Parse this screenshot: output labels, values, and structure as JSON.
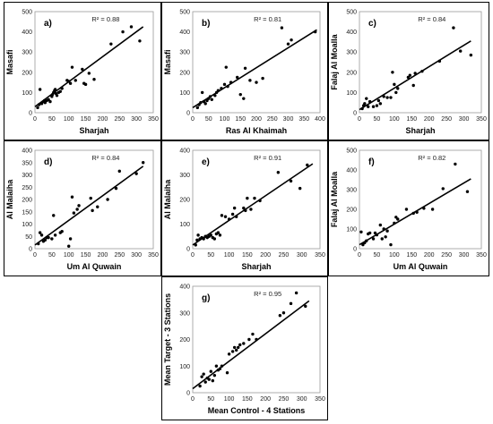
{
  "chart_data": [
    {
      "id": "a",
      "type": "scatter",
      "letter": "a)",
      "r2": "R² = 0.88",
      "xlabel": "Sharjah",
      "ylabel": "Masafi",
      "xlim": [
        0,
        350
      ],
      "ylim": [
        0,
        500
      ],
      "xticks": [
        0,
        50,
        100,
        150,
        200,
        250,
        300,
        350
      ],
      "yticks": [
        0,
        100,
        200,
        300,
        400,
        500
      ],
      "trendline": [
        [
          0,
          30
        ],
        [
          320,
          425
        ]
      ],
      "points": [
        [
          8,
          25
        ],
        [
          12,
          40
        ],
        [
          15,
          115
        ],
        [
          20,
          45
        ],
        [
          25,
          55
        ],
        [
          28,
          60
        ],
        [
          30,
          50
        ],
        [
          35,
          60
        ],
        [
          40,
          65
        ],
        [
          45,
          55
        ],
        [
          50,
          80
        ],
        [
          52,
          90
        ],
        [
          55,
          100
        ],
        [
          58,
          110
        ],
        [
          60,
          115
        ],
        [
          62,
          95
        ],
        [
          65,
          85
        ],
        [
          70,
          100
        ],
        [
          75,
          105
        ],
        [
          80,
          120
        ],
        [
          95,
          160
        ],
        [
          100,
          155
        ],
        [
          105,
          145
        ],
        [
          110,
          225
        ],
        [
          120,
          160
        ],
        [
          140,
          215
        ],
        [
          145,
          145
        ],
        [
          150,
          140
        ],
        [
          160,
          195
        ],
        [
          175,
          165
        ],
        [
          225,
          340
        ],
        [
          260,
          400
        ],
        [
          285,
          425
        ],
        [
          310,
          355
        ]
      ]
    },
    {
      "id": "b",
      "type": "scatter",
      "letter": "b)",
      "r2": "R² = 0.81",
      "xlabel": "Ras Al Khaimah",
      "ylabel": "Masafi",
      "xlim": [
        0,
        400
      ],
      "ylim": [
        0,
        500
      ],
      "xticks": [
        0,
        50,
        100,
        150,
        200,
        250,
        300,
        350,
        400
      ],
      "yticks": [
        0,
        100,
        200,
        300,
        400,
        500
      ],
      "trendline": [
        [
          0,
          25
        ],
        [
          390,
          410
        ]
      ],
      "points": [
        [
          15,
          25
        ],
        [
          20,
          40
        ],
        [
          25,
          50
        ],
        [
          30,
          100
        ],
        [
          35,
          55
        ],
        [
          40,
          45
        ],
        [
          45,
          60
        ],
        [
          50,
          70
        ],
        [
          55,
          80
        ],
        [
          60,
          65
        ],
        [
          70,
          85
        ],
        [
          75,
          100
        ],
        [
          80,
          110
        ],
        [
          90,
          120
        ],
        [
          100,
          140
        ],
        [
          105,
          225
        ],
        [
          110,
          130
        ],
        [
          120,
          150
        ],
        [
          140,
          175
        ],
        [
          150,
          90
        ],
        [
          160,
          70
        ],
        [
          165,
          220
        ],
        [
          180,
          160
        ],
        [
          200,
          150
        ],
        [
          220,
          170
        ],
        [
          280,
          420
        ],
        [
          300,
          340
        ],
        [
          310,
          360
        ],
        [
          385,
          400
        ]
      ]
    },
    {
      "id": "c",
      "type": "scatter",
      "letter": "c)",
      "r2": "R² = 0.84",
      "xlabel": "Sharjah",
      "ylabel": "Falaj Al Moalla",
      "xlim": [
        0,
        350
      ],
      "ylim": [
        0,
        500
      ],
      "xticks": [
        0,
        50,
        100,
        150,
        200,
        250,
        300,
        350
      ],
      "yticks": [
        0,
        100,
        200,
        300,
        400,
        500
      ],
      "trendline": [
        [
          0,
          15
        ],
        [
          320,
          355
        ]
      ],
      "points": [
        [
          8,
          20
        ],
        [
          12,
          35
        ],
        [
          15,
          45
        ],
        [
          20,
          70
        ],
        [
          25,
          30
        ],
        [
          30,
          55
        ],
        [
          40,
          30
        ],
        [
          50,
          35
        ],
        [
          55,
          60
        ],
        [
          60,
          45
        ],
        [
          70,
          80
        ],
        [
          80,
          75
        ],
        [
          90,
          75
        ],
        [
          95,
          200
        ],
        [
          100,
          140
        ],
        [
          105,
          100
        ],
        [
          110,
          120
        ],
        [
          140,
          175
        ],
        [
          145,
          185
        ],
        [
          155,
          135
        ],
        [
          160,
          195
        ],
        [
          180,
          205
        ],
        [
          230,
          255
        ],
        [
          270,
          420
        ],
        [
          290,
          305
        ],
        [
          320,
          285
        ]
      ]
    },
    {
      "id": "d",
      "type": "scatter",
      "letter": "d)",
      "r2": "R² = 0.84",
      "xlabel": "Um Al Quwain",
      "ylabel": "Al Malaiha",
      "xlim": [
        0,
        350
      ],
      "ylim": [
        0,
        400
      ],
      "xticks": [
        0,
        50,
        100,
        150,
        200,
        250,
        300,
        350
      ],
      "yticks": [
        0,
        50,
        100,
        150,
        200,
        250,
        300,
        350,
        400
      ],
      "trendline": [
        [
          0,
          15
        ],
        [
          320,
          335
        ]
      ],
      "points": [
        [
          10,
          20
        ],
        [
          15,
          65
        ],
        [
          20,
          55
        ],
        [
          25,
          30
        ],
        [
          30,
          35
        ],
        [
          35,
          45
        ],
        [
          40,
          45
        ],
        [
          50,
          40
        ],
        [
          55,
          135
        ],
        [
          60,
          55
        ],
        [
          75,
          65
        ],
        [
          80,
          70
        ],
        [
          100,
          10
        ],
        [
          105,
          40
        ],
        [
          110,
          210
        ],
        [
          115,
          145
        ],
        [
          125,
          160
        ],
        [
          130,
          175
        ],
        [
          165,
          205
        ],
        [
          170,
          155
        ],
        [
          185,
          170
        ],
        [
          215,
          200
        ],
        [
          240,
          245
        ],
        [
          250,
          315
        ],
        [
          300,
          305
        ],
        [
          320,
          350
        ]
      ]
    },
    {
      "id": "e",
      "type": "scatter",
      "letter": "e)",
      "r2": "R² = 0.91",
      "xlabel": "Sharjah",
      "ylabel": "Al Malaiha",
      "xlim": [
        0,
        350
      ],
      "ylim": [
        0,
        400
      ],
      "xticks": [
        0,
        50,
        100,
        150,
        200,
        250,
        300,
        350
      ],
      "yticks": [
        0,
        100,
        200,
        300,
        400
      ],
      "trendline": [
        [
          0,
          15
        ],
        [
          330,
          345
        ]
      ],
      "points": [
        [
          8,
          15
        ],
        [
          12,
          35
        ],
        [
          15,
          55
        ],
        [
          20,
          40
        ],
        [
          25,
          45
        ],
        [
          30,
          40
        ],
        [
          35,
          50
        ],
        [
          40,
          45
        ],
        [
          45,
          50
        ],
        [
          50,
          55
        ],
        [
          55,
          45
        ],
        [
          60,
          40
        ],
        [
          65,
          60
        ],
        [
          70,
          65
        ],
        [
          75,
          55
        ],
        [
          80,
          135
        ],
        [
          90,
          130
        ],
        [
          100,
          120
        ],
        [
          110,
          140
        ],
        [
          115,
          165
        ],
        [
          120,
          130
        ],
        [
          140,
          165
        ],
        [
          145,
          155
        ],
        [
          150,
          205
        ],
        [
          160,
          160
        ],
        [
          170,
          205
        ],
        [
          185,
          195
        ],
        [
          235,
          310
        ],
        [
          270,
          275
        ],
        [
          295,
          245
        ],
        [
          315,
          340
        ]
      ]
    },
    {
      "id": "f",
      "type": "scatter",
      "letter": "f)",
      "r2": "R² = 0.82",
      "xlabel": "Um Al Quwain",
      "ylabel": "Falaj Al Moalla",
      "xlim": [
        0,
        350
      ],
      "ylim": [
        0,
        500
      ],
      "xticks": [
        0,
        50,
        100,
        150,
        200,
        250,
        300,
        350
      ],
      "yticks": [
        0,
        100,
        200,
        300,
        400,
        500
      ],
      "trendline": [
        [
          0,
          20
        ],
        [
          320,
          355
        ]
      ],
      "points": [
        [
          5,
          85
        ],
        [
          10,
          20
        ],
        [
          15,
          30
        ],
        [
          20,
          40
        ],
        [
          25,
          75
        ],
        [
          30,
          80
        ],
        [
          40,
          50
        ],
        [
          45,
          80
        ],
        [
          50,
          70
        ],
        [
          60,
          120
        ],
        [
          65,
          50
        ],
        [
          70,
          100
        ],
        [
          75,
          60
        ],
        [
          80,
          90
        ],
        [
          90,
          20
        ],
        [
          100,
          130
        ],
        [
          105,
          160
        ],
        [
          110,
          150
        ],
        [
          135,
          200
        ],
        [
          155,
          180
        ],
        [
          165,
          185
        ],
        [
          185,
          205
        ],
        [
          210,
          200
        ],
        [
          240,
          305
        ],
        [
          275,
          430
        ],
        [
          310,
          290
        ]
      ]
    },
    {
      "id": "g",
      "type": "scatter",
      "letter": "g)",
      "r2": "R² = 0.95",
      "xlabel": "Mean Control - 4  Stations",
      "ylabel": "Mean Target - 3 Stations",
      "xlim": [
        0,
        350
      ],
      "ylim": [
        0,
        400
      ],
      "xticks": [
        0,
        50,
        100,
        150,
        200,
        250,
        300,
        350
      ],
      "yticks": [
        0,
        100,
        200,
        300,
        400
      ],
      "trendline": [
        [
          0,
          15
        ],
        [
          320,
          345
        ]
      ],
      "points": [
        [
          20,
          25
        ],
        [
          25,
          60
        ],
        [
          30,
          70
        ],
        [
          35,
          40
        ],
        [
          40,
          55
        ],
        [
          45,
          50
        ],
        [
          50,
          80
        ],
        [
          55,
          45
        ],
        [
          60,
          65
        ],
        [
          65,
          100
        ],
        [
          70,
          85
        ],
        [
          75,
          90
        ],
        [
          80,
          100
        ],
        [
          95,
          75
        ],
        [
          100,
          145
        ],
        [
          110,
          155
        ],
        [
          115,
          170
        ],
        [
          120,
          160
        ],
        [
          125,
          170
        ],
        [
          130,
          180
        ],
        [
          140,
          185
        ],
        [
          155,
          200
        ],
        [
          165,
          220
        ],
        [
          175,
          200
        ],
        [
          240,
          290
        ],
        [
          250,
          300
        ],
        [
          270,
          335
        ],
        [
          285,
          375
        ],
        [
          310,
          325
        ]
      ]
    }
  ]
}
